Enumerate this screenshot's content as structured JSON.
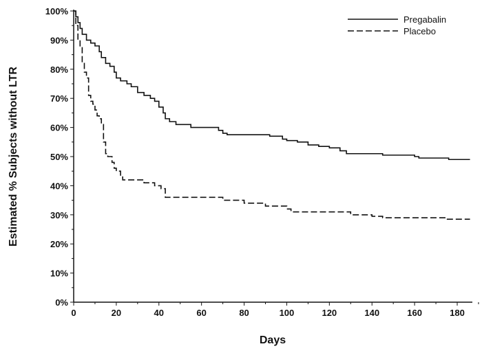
{
  "chart_data": {
    "type": "line",
    "title": "",
    "xlabel": "Days",
    "ylabel": "Estimated % Subjects without LTR",
    "xlim": [
      0,
      186
    ],
    "ylim": [
      0,
      100
    ],
    "xticks": [
      0,
      20,
      40,
      60,
      80,
      100,
      120,
      140,
      160,
      180
    ],
    "yticks": [
      "0%",
      "10%",
      "20%",
      "30%",
      "40%",
      "50%",
      "60%",
      "70%",
      "80%",
      "90%",
      "100%"
    ],
    "grid": false,
    "legend_position": "top-right",
    "series": [
      {
        "name": "Pregabalin",
        "style": "solid",
        "color": "#111111",
        "points": [
          [
            0,
            100
          ],
          [
            1,
            98
          ],
          [
            2,
            96
          ],
          [
            3,
            94
          ],
          [
            4,
            92
          ],
          [
            6,
            90
          ],
          [
            8,
            89
          ],
          [
            10,
            88
          ],
          [
            12,
            86
          ],
          [
            13,
            84
          ],
          [
            15,
            82
          ],
          [
            17,
            81
          ],
          [
            19,
            79
          ],
          [
            20,
            77
          ],
          [
            22,
            76
          ],
          [
            25,
            75
          ],
          [
            27,
            74
          ],
          [
            30,
            72
          ],
          [
            33,
            71
          ],
          [
            36,
            70
          ],
          [
            38,
            69
          ],
          [
            40,
            67
          ],
          [
            42,
            65
          ],
          [
            43,
            63
          ],
          [
            45,
            62
          ],
          [
            48,
            61
          ],
          [
            55,
            60
          ],
          [
            68,
            59
          ],
          [
            70,
            58
          ],
          [
            72,
            57.5
          ],
          [
            92,
            57
          ],
          [
            98,
            56
          ],
          [
            100,
            55.5
          ],
          [
            105,
            55
          ],
          [
            110,
            54
          ],
          [
            115,
            53.5
          ],
          [
            120,
            53
          ],
          [
            125,
            52
          ],
          [
            128,
            51
          ],
          [
            145,
            50.5
          ],
          [
            160,
            50
          ],
          [
            162,
            49.5
          ],
          [
            176,
            49
          ],
          [
            186,
            49
          ]
        ]
      },
      {
        "name": "Placebo",
        "style": "dashed",
        "color": "#111111",
        "points": [
          [
            0,
            100
          ],
          [
            1,
            95
          ],
          [
            2,
            90
          ],
          [
            3,
            88
          ],
          [
            4,
            82
          ],
          [
            5,
            79
          ],
          [
            6,
            77
          ],
          [
            7,
            71
          ],
          [
            8,
            69
          ],
          [
            9,
            68
          ],
          [
            10,
            66
          ],
          [
            11,
            64
          ],
          [
            12,
            63
          ],
          [
            13,
            61
          ],
          [
            14,
            55
          ],
          [
            15,
            51
          ],
          [
            16,
            50
          ],
          [
            18,
            48
          ],
          [
            19,
            46
          ],
          [
            20,
            45
          ],
          [
            22,
            43
          ],
          [
            23,
            42
          ],
          [
            33,
            41
          ],
          [
            38,
            40
          ],
          [
            41,
            39
          ],
          [
            43,
            36
          ],
          [
            60,
            36
          ],
          [
            70,
            35
          ],
          [
            80,
            34
          ],
          [
            90,
            33
          ],
          [
            100,
            32
          ],
          [
            102,
            31
          ],
          [
            120,
            31
          ],
          [
            130,
            30
          ],
          [
            140,
            29.5
          ],
          [
            145,
            29
          ],
          [
            175,
            28.5
          ],
          [
            186,
            28.5
          ]
        ]
      }
    ]
  }
}
